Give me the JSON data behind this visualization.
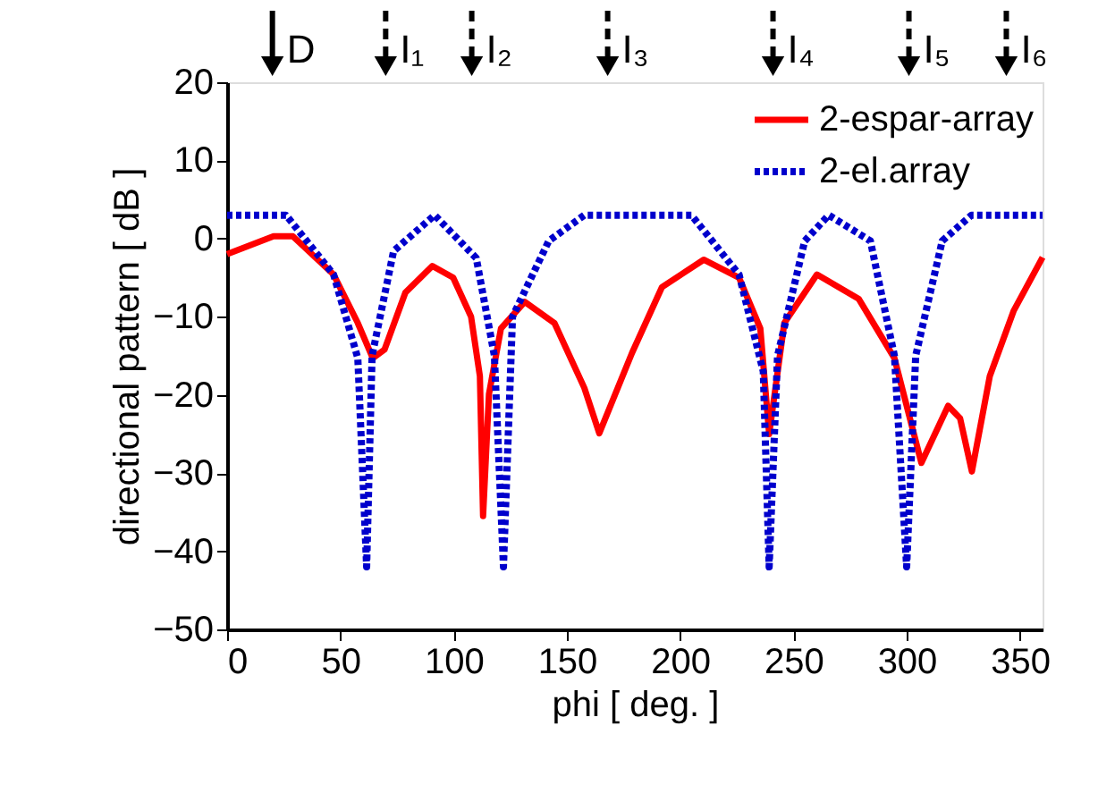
{
  "chart_data": {
    "type": "line",
    "xlabel": "phi [ deg. ]",
    "ylabel": "directional pattern [ dB ]",
    "xlim": [
      0,
      360
    ],
    "xticks": [
      0,
      50,
      100,
      150,
      200,
      250,
      300,
      350
    ],
    "ylim": [
      -50,
      20
    ],
    "yticks": [
      -50,
      -40,
      -30,
      -20,
      -10,
      0,
      10,
      20
    ],
    "grid": false,
    "legend": "top right",
    "marker": "none",
    "series": [
      {
        "name": "2-espar-array",
        "color": "#ff0000",
        "line_style": "solid",
        "x": [
          0,
          20.5,
          29,
          47,
          57.7,
          64.3,
          69.5,
          78.7,
          90.6,
          99.8,
          107.7,
          111.6,
          113,
          115.6,
          120.9,
          131.4,
          144.5,
          157.7,
          164.3,
          178.8,
          192,
          210.4,
          226,
          235.4,
          239.3,
          246,
          260.4,
          278.8,
          294.6,
          306.5,
          318.3,
          323.6,
          328.8,
          336.7,
          347.3,
          360
        ],
        "values": [
          -2,
          0.3,
          0.3,
          -4.6,
          -10.8,
          -15.3,
          -14.2,
          -6.9,
          -3.5,
          -5,
          -10,
          -17.6,
          -35.5,
          -19.9,
          -11.5,
          -8.1,
          -10.8,
          -19.1,
          -24.9,
          -14.6,
          -6.2,
          -2.7,
          -5,
          -11.5,
          -25,
          -10.8,
          -4.6,
          -7.7,
          -15.3,
          -28.7,
          -21.4,
          -23,
          -29.8,
          -17.6,
          -9.2,
          -2.4
        ]
      },
      {
        "name": "2-el.array",
        "color": "#0000cc",
        "line_style": "dotted",
        "x": [
          0,
          26,
          47,
          57.7,
          61.6,
          64,
          73.5,
          91.6,
          110,
          118,
          122,
          126,
          142,
          157.7,
          205,
          226,
          236.7,
          239.3,
          243,
          255,
          265.6,
          284,
          294.6,
          300,
          304,
          315.7,
          328.6,
          360
        ],
        "values": [
          3,
          3,
          -4.6,
          -15.3,
          -42,
          -15,
          -1.6,
          3,
          -2.5,
          -15,
          -42,
          -10,
          -0.3,
          3,
          3,
          -4.6,
          -17,
          -42,
          -15,
          -0.3,
          3,
          -0.3,
          -15,
          -42,
          -15,
          -0.3,
          3,
          3
        ]
      }
    ],
    "ref_lines": [
      {
        "axis": "x",
        "value": 20,
        "label": "D",
        "line_style": "solid"
      },
      {
        "axis": "x",
        "value": 70,
        "label": "I₁",
        "line_style": "dashed"
      },
      {
        "axis": "x",
        "value": 108,
        "label": "I₂",
        "line_style": "dashed"
      },
      {
        "axis": "x",
        "value": 168,
        "label": "I₃",
        "line_style": "dashed"
      },
      {
        "axis": "x",
        "value": 241,
        "label": "I₄",
        "line_style": "dashed"
      },
      {
        "axis": "x",
        "value": 301,
        "label": "I₅",
        "line_style": "dashed"
      },
      {
        "axis": "x",
        "value": 344,
        "label": "I₆",
        "line_style": "dashed"
      }
    ]
  }
}
